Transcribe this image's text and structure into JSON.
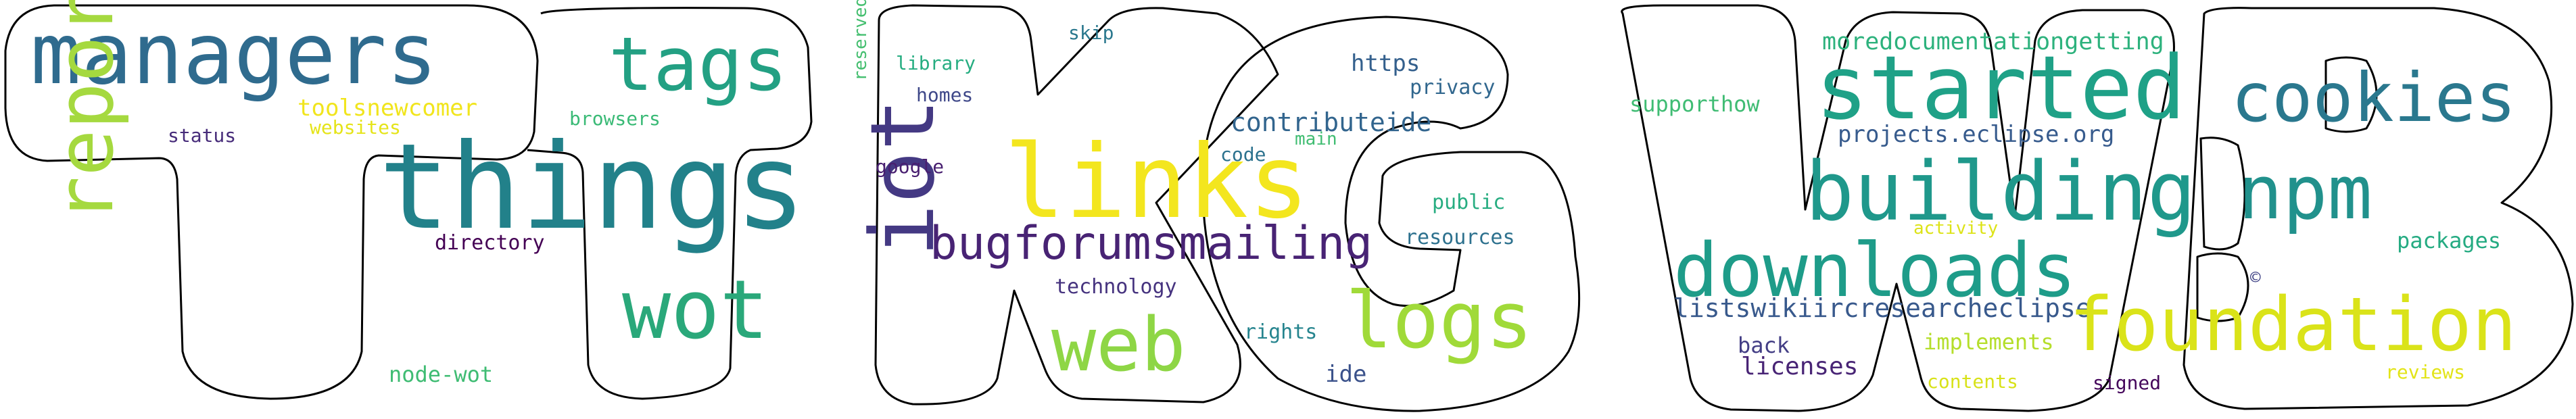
{
  "word_cloud": {
    "background_color": "#ffffff",
    "outline_color": "#000000",
    "words": [
      {
        "text": "managers",
        "color": "#2f6b8e"
      },
      {
        "text": "things",
        "color": "#22818a"
      },
      {
        "text": "tags",
        "color": "#23a083"
      },
      {
        "text": "wot",
        "color": "#2aa87a"
      },
      {
        "text": "report",
        "color": "#a5d93f"
      },
      {
        "text": "toolsnewcomer",
        "color": "#f1e51d"
      },
      {
        "text": "websites",
        "color": "#e5e419"
      },
      {
        "text": "status",
        "color": "#472c7a"
      },
      {
        "text": "browsers",
        "color": "#3aba76"
      },
      {
        "text": "directory",
        "color": "#440154"
      },
      {
        "text": "node-wot",
        "color": "#3fbc73"
      },
      {
        "text": "links",
        "color": "#f3e61e"
      },
      {
        "text": "bugforumsmailing",
        "color": "#482374"
      },
      {
        "text": "iot",
        "color": "#443983"
      },
      {
        "text": "web",
        "color": "#8ed645"
      },
      {
        "text": "logs",
        "color": "#a0da39"
      },
      {
        "text": "skip",
        "color": "#2a788e"
      },
      {
        "text": "library",
        "color": "#26ad81"
      },
      {
        "text": "reserved",
        "color": "#45bf70"
      },
      {
        "text": "homes",
        "color": "#3f4889"
      },
      {
        "text": "google",
        "color": "#481f70"
      },
      {
        "text": "https",
        "color": "#34608d"
      },
      {
        "text": "privacy",
        "color": "#31678e"
      },
      {
        "text": "contributeide",
        "color": "#32658e"
      },
      {
        "text": "code",
        "color": "#2c728e"
      },
      {
        "text": "main",
        "color": "#40bd72"
      },
      {
        "text": "public",
        "color": "#27ad81"
      },
      {
        "text": "resources",
        "color": "#2d718e"
      },
      {
        "text": "technology",
        "color": "#46337f"
      },
      {
        "text": "rights",
        "color": "#25848e"
      },
      {
        "text": "ide",
        "color": "#3b528b"
      },
      {
        "text": "moredocumentationgetting",
        "color": "#2db27d"
      },
      {
        "text": "started",
        "color": "#1fa187"
      },
      {
        "text": "cookies",
        "color": "#2a788e"
      },
      {
        "text": "supporthow",
        "color": "#3fbc73"
      },
      {
        "text": "projects.eclipse.org",
        "color": "#375b8d"
      },
      {
        "text": "building",
        "color": "#1f988b"
      },
      {
        "text": "npm",
        "color": "#21918c"
      },
      {
        "text": "downloads",
        "color": "#1e9c89"
      },
      {
        "text": "activity",
        "color": "#dde318"
      },
      {
        "text": "©",
        "color": "#414487"
      },
      {
        "text": "packages",
        "color": "#25ab82"
      },
      {
        "text": "listswikiircresearcheclipse",
        "color": "#38598c"
      },
      {
        "text": "foundation",
        "color": "#dae319"
      },
      {
        "text": "implements",
        "color": "#b5de2b"
      },
      {
        "text": "back",
        "color": "#433e85"
      },
      {
        "text": "licenses",
        "color": "#482475"
      },
      {
        "text": "contents",
        "color": "#d8e219"
      },
      {
        "text": "signed",
        "color": "#46085c"
      },
      {
        "text": "reviews",
        "color": "#e2e418"
      }
    ]
  }
}
